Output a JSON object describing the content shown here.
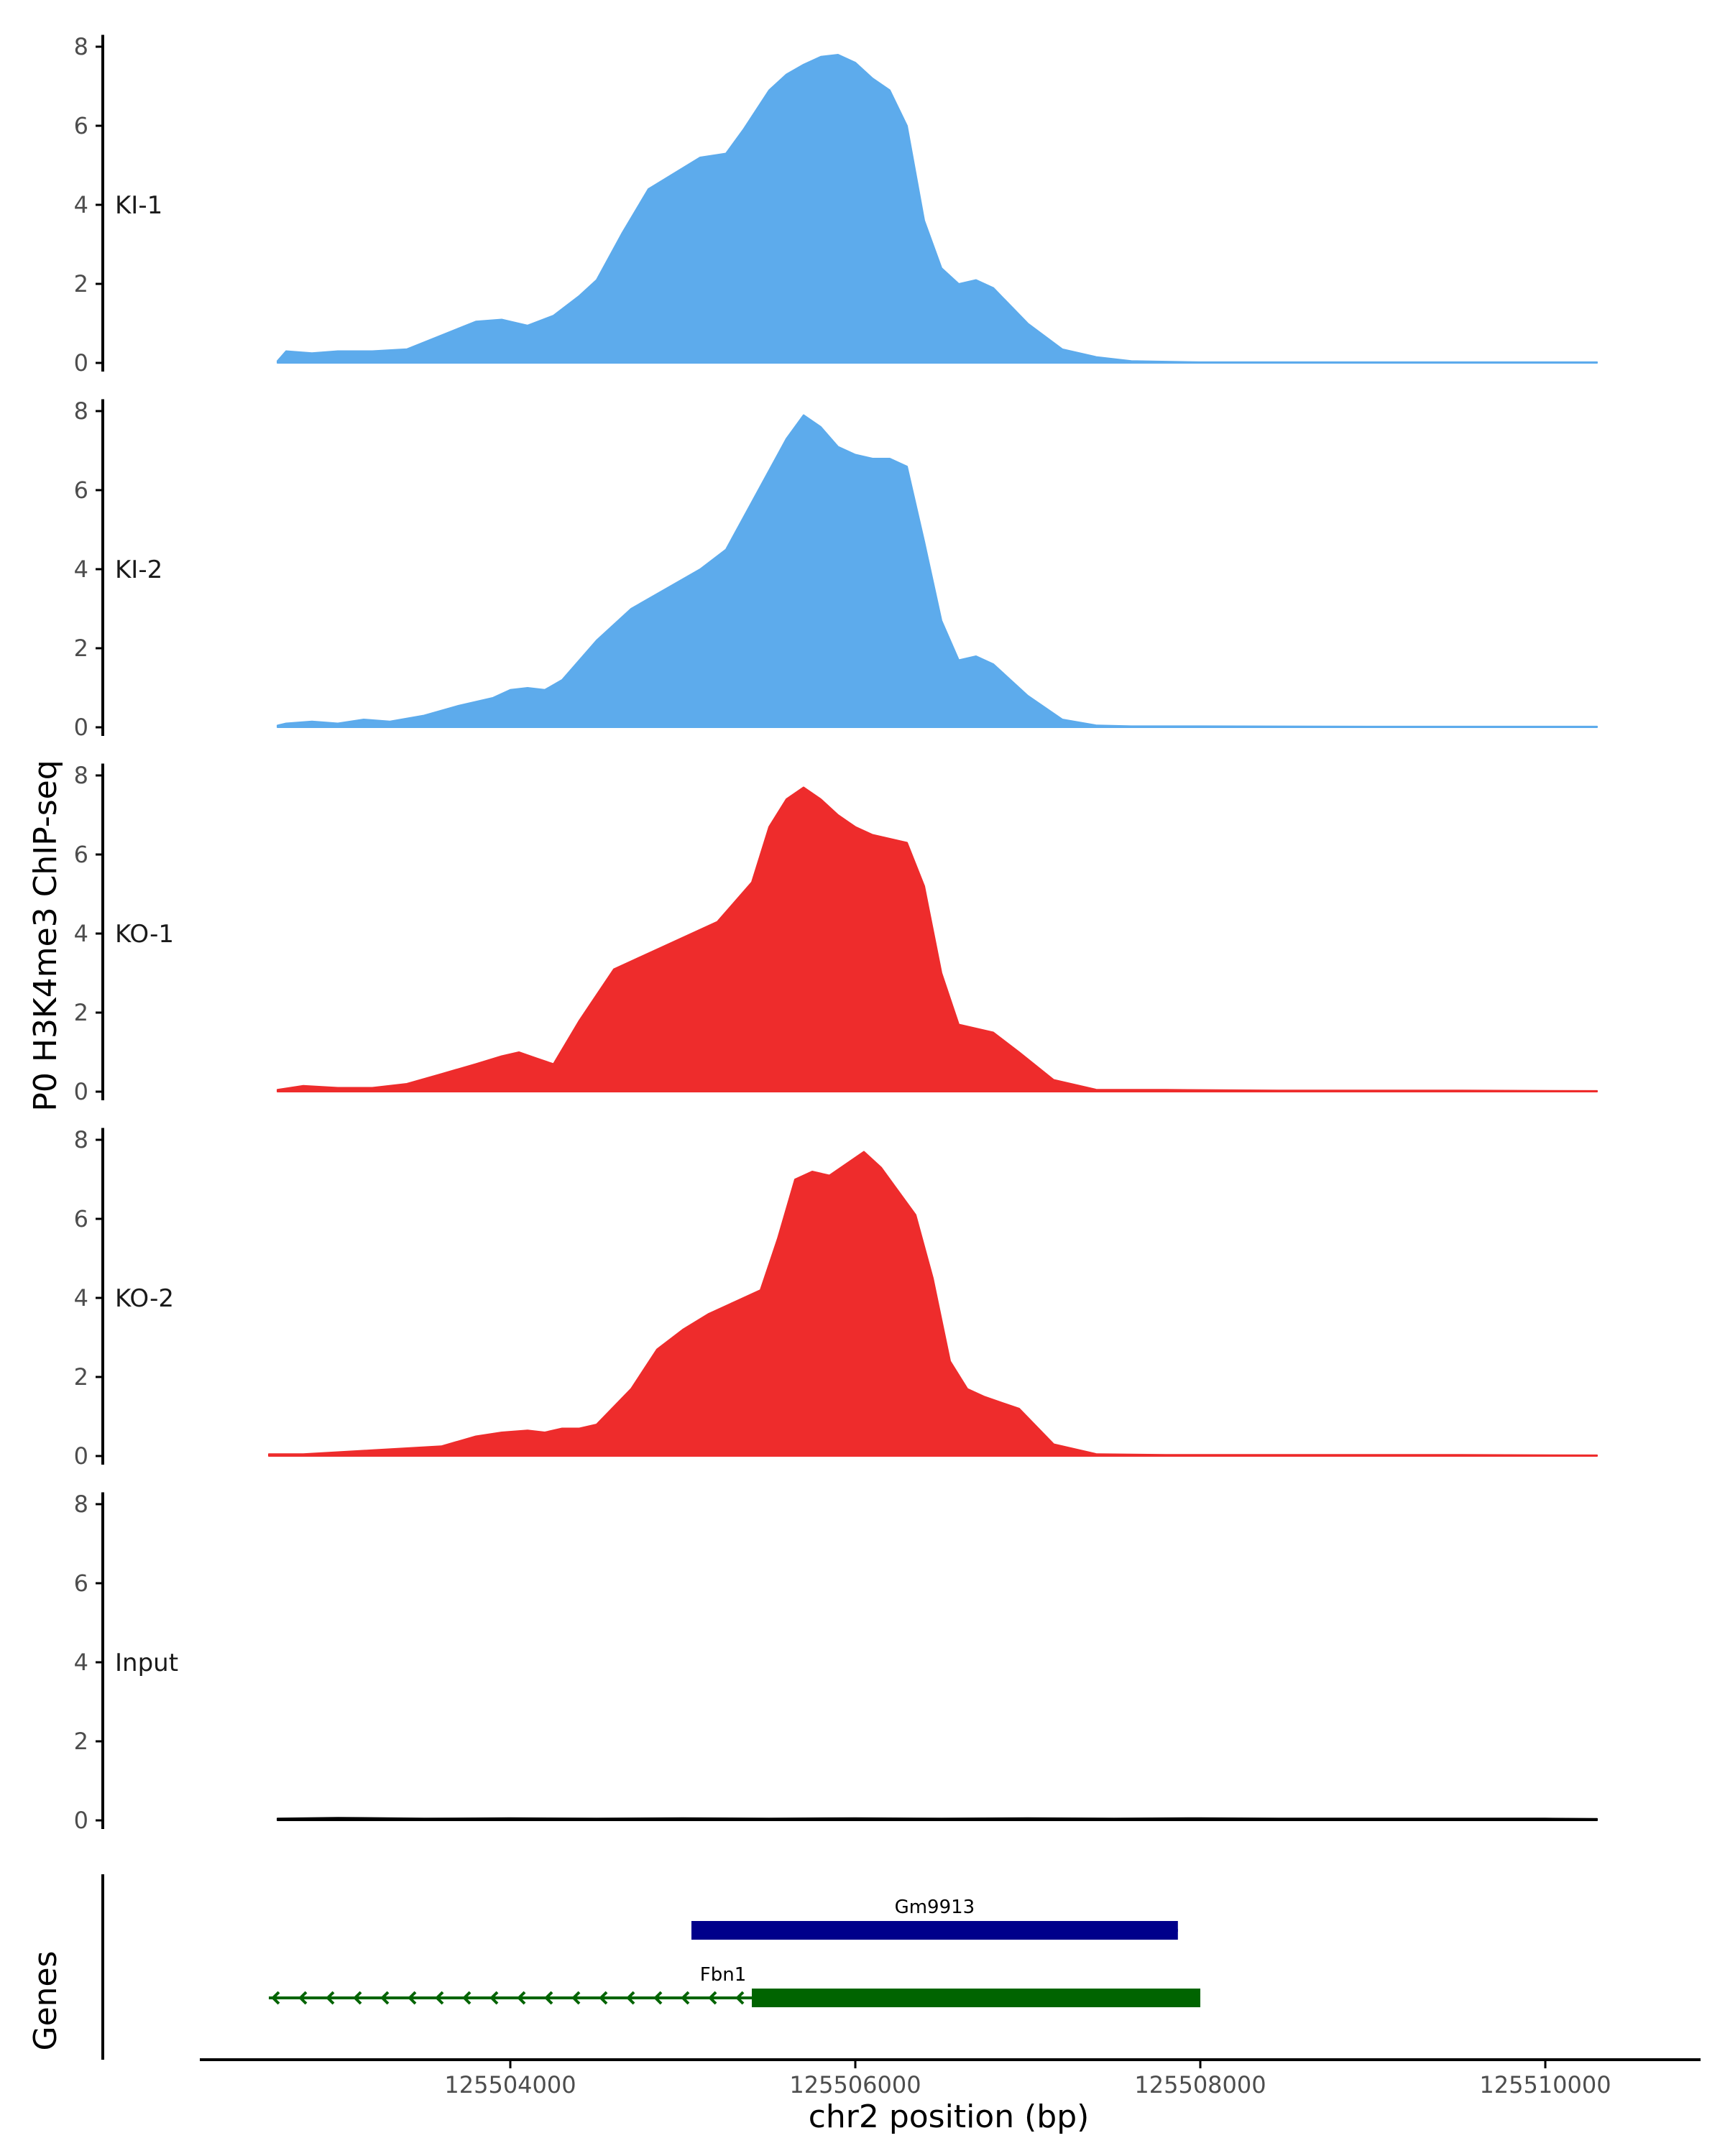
{
  "chart_data": {
    "type": "area",
    "ylabel": "P0 H3K4me3 ChIP-seq",
    "xlabel": "chr2 position (bp)",
    "ylim": [
      0,
      8.3
    ],
    "y_ticks": [
      0,
      2,
      4,
      6,
      8
    ],
    "xlim": [
      125502200,
      125510900
    ],
    "x_ticks": [
      125504000,
      125506000,
      125508000,
      125510000
    ],
    "x_tick_labels": [
      "125504000",
      "125506000",
      "125508000",
      "125510000"
    ],
    "grid": false,
    "tracks": [
      {
        "label": "KI-1",
        "color": "#5DABEC",
        "x": [
          125502650,
          125502700,
          125502850,
          125503000,
          125503200,
          125503400,
          125503600,
          125503800,
          125503950,
          125504100,
          125504250,
          125504400,
          125504500,
          125504650,
          125504800,
          125504950,
          125505100,
          125505250,
          125505350,
          125505500,
          125505600,
          125505700,
          125505800,
          125505900,
          125506000,
          125506100,
          125506200,
          125506300,
          125506400,
          125506500,
          125506600,
          125506700,
          125506800,
          125507000,
          125507200,
          125507400,
          125507600,
          125508000,
          125509000,
          125510000,
          125510300
        ],
        "y": [
          0.05,
          0.3,
          0.25,
          0.3,
          0.3,
          0.35,
          0.7,
          1.05,
          1.1,
          0.95,
          1.2,
          1.7,
          2.1,
          3.3,
          4.4,
          4.8,
          5.2,
          5.3,
          5.9,
          6.9,
          7.3,
          7.55,
          7.75,
          7.8,
          7.6,
          7.2,
          6.9,
          6.0,
          3.6,
          2.4,
          2.0,
          2.1,
          1.9,
          1.0,
          0.35,
          0.15,
          0.05,
          0.02,
          0.02,
          0.02,
          0.02
        ]
      },
      {
        "label": "KI-2",
        "color": "#5DABEC",
        "x": [
          125502650,
          125502700,
          125502850,
          125503000,
          125503150,
          125503300,
          125503500,
          125503700,
          125503900,
          125504000,
          125504100,
          125504200,
          125504300,
          125504500,
          125504700,
          125504900,
          125505100,
          125505250,
          125505400,
          125505500,
          125505600,
          125505700,
          125505800,
          125505900,
          125506000,
          125506100,
          125506200,
          125506300,
          125506400,
          125506500,
          125506600,
          125506700,
          125506800,
          125507000,
          125507200,
          125507400,
          125507600,
          125508000,
          125509000,
          125510000,
          125510300
        ],
        "y": [
          0.05,
          0.1,
          0.15,
          0.1,
          0.2,
          0.15,
          0.3,
          0.55,
          0.75,
          0.95,
          1.0,
          0.95,
          1.2,
          2.2,
          3.0,
          3.5,
          4.0,
          4.5,
          5.7,
          6.5,
          7.3,
          7.9,
          7.6,
          7.1,
          6.9,
          6.8,
          6.8,
          6.6,
          4.7,
          2.7,
          1.7,
          1.8,
          1.6,
          0.8,
          0.2,
          0.05,
          0.03,
          0.03,
          0.02,
          0.02,
          0.02
        ]
      },
      {
        "label": "KO-1",
        "color": "#EE2C2C",
        "x": [
          125502650,
          125502800,
          125503000,
          125503200,
          125503400,
          125503600,
          125503800,
          125503950,
          125504050,
          125504150,
          125504250,
          125504400,
          125504600,
          125504700,
          125504850,
          125505000,
          125505200,
          125505400,
          125505500,
          125505600,
          125505700,
          125505800,
          125505900,
          125506000,
          125506100,
          125506200,
          125506300,
          125506400,
          125506500,
          125506600,
          125506700,
          125506800,
          125506950,
          125507150,
          125507400,
          125507800,
          125508500,
          125509500,
          125510300
        ],
        "y": [
          0.05,
          0.15,
          0.1,
          0.1,
          0.2,
          0.45,
          0.7,
          0.9,
          1.0,
          0.85,
          0.7,
          1.8,
          3.1,
          3.3,
          3.6,
          3.9,
          4.3,
          5.3,
          6.7,
          7.4,
          7.7,
          7.4,
          7.0,
          6.7,
          6.5,
          6.4,
          6.3,
          5.2,
          3.0,
          1.7,
          1.6,
          1.5,
          1.0,
          0.3,
          0.05,
          0.05,
          0.03,
          0.03,
          0.02
        ]
      },
      {
        "label": "KO-2",
        "color": "#EE2C2C",
        "x": [
          125502600,
          125502800,
          125503000,
          125503200,
          125503400,
          125503600,
          125503800,
          125503950,
          125504100,
          125504200,
          125504300,
          125504400,
          125504500,
          125504700,
          125504850,
          125505000,
          125505150,
          125505300,
          125505450,
          125505550,
          125505650,
          125505750,
          125505850,
          125505950,
          125506050,
          125506150,
          125506250,
          125506350,
          125506450,
          125506550,
          125506650,
          125506750,
          125506950,
          125507150,
          125507400,
          125507800,
          125508500,
          125509500,
          125510300
        ],
        "y": [
          0.05,
          0.05,
          0.1,
          0.15,
          0.2,
          0.25,
          0.5,
          0.6,
          0.65,
          0.6,
          0.7,
          0.7,
          0.8,
          1.7,
          2.7,
          3.2,
          3.6,
          3.9,
          4.2,
          5.5,
          7.0,
          7.2,
          7.1,
          7.4,
          7.7,
          7.3,
          6.7,
          6.1,
          4.5,
          2.4,
          1.7,
          1.5,
          1.2,
          0.3,
          0.05,
          0.03,
          0.03,
          0.03,
          0.02
        ]
      },
      {
        "label": "Input",
        "color": "#000000",
        "x": [
          125502650,
          125503000,
          125503500,
          125504000,
          125504500,
          125505000,
          125505500,
          125506000,
          125506500,
          125507000,
          125507500,
          125508000,
          125508500,
          125509000,
          125509500,
          125510000,
          125510300
        ],
        "y": [
          0.05,
          0.07,
          0.05,
          0.06,
          0.05,
          0.06,
          0.05,
          0.06,
          0.05,
          0.06,
          0.05,
          0.06,
          0.05,
          0.05,
          0.05,
          0.05,
          0.04
        ]
      }
    ],
    "genes_label": "Genes",
    "genes": [
      {
        "name": "Gm9913",
        "start": 125505050,
        "end": 125507870,
        "strand": "+",
        "color": "#00008B",
        "row": 0
      },
      {
        "name": "Fbn1",
        "start": 125502600,
        "end": 125508000,
        "strand": "-",
        "color": "#006400",
        "row": 1,
        "thick_start": 125505400,
        "thick_end": 125508000
      }
    ]
  }
}
